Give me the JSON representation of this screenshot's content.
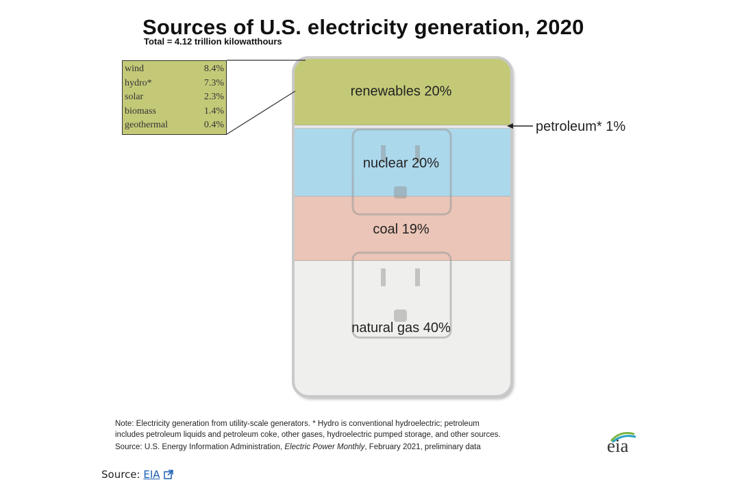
{
  "chart_data": {
    "type": "bar",
    "title": "Sources of U.S. electricity generation, 2020",
    "subtitle": "Total = 4.12 trillion kilowatthours",
    "categories": [
      "renewables",
      "petroleum*",
      "nuclear",
      "coal",
      "natural gas"
    ],
    "values": [
      20,
      1,
      20,
      19,
      40
    ],
    "unit": "%",
    "segment_labels": {
      "renewables": "renewables 20%",
      "petroleum": "petroleum* 1%",
      "nuclear": "nuclear 20%",
      "coal": "coal 19%",
      "natural_gas": "natural gas 40%"
    },
    "renewables_breakdown": [
      {
        "name": "wind",
        "value": "8.4%"
      },
      {
        "name": "hydro*",
        "value": "7.3%"
      },
      {
        "name": "solar",
        "value": "2.3%"
      },
      {
        "name": "biomass",
        "value": "1.4%"
      },
      {
        "name": "geothermal",
        "value": "0.4%"
      }
    ],
    "colors": {
      "renewables": "#c4c978",
      "petroleum": "#e6e6e6",
      "nuclear": "#acd8ec",
      "coal": "#ebc5b7",
      "natural_gas": "#efefee"
    }
  },
  "note": {
    "line1": "Note: Electricity generation from utility-scale generators. * Hydro is conventional hydroelectric; petroleum",
    "line2": "includes petroleum liquids and petroleum coke, other gases, hydroelectric pumped storage, and other sources.",
    "source_prefix": "Source: U.S. Energy Information Administration, ",
    "source_pub": "Electric Power Monthly",
    "source_suffix": ", February 2021, preliminary data"
  },
  "logo": {
    "text": "eia"
  },
  "footer": {
    "prefix": "Source: ",
    "link": "EIA"
  }
}
